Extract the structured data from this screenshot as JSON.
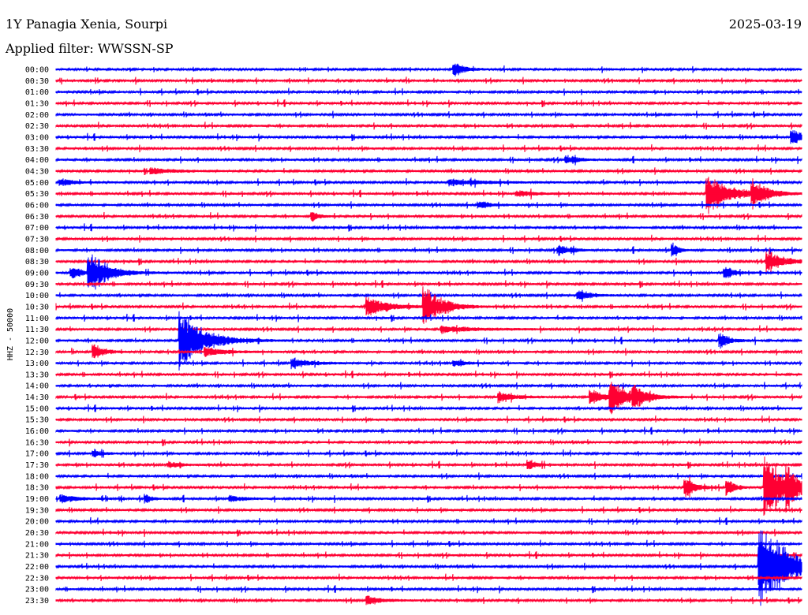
{
  "header": {
    "station": "1Y Panagia Xenia, Sourpi",
    "date": "2025-03-19",
    "filter_label": "Applied filter: WWSSN-SP"
  },
  "chart_data": {
    "type": "line",
    "plot_type": "helicorder",
    "y_axis_label": "HHZ - 50000",
    "row_labels": [
      "00:00",
      "00:30",
      "01:00",
      "01:30",
      "02:00",
      "02:30",
      "03:00",
      "03:30",
      "04:00",
      "04:30",
      "05:00",
      "05:30",
      "06:00",
      "06:30",
      "07:00",
      "07:30",
      "08:00",
      "08:30",
      "09:00",
      "09:30",
      "10:00",
      "10:30",
      "11:00",
      "11:30",
      "12:00",
      "12:30",
      "13:00",
      "13:30",
      "14:00",
      "14:30",
      "15:00",
      "15:30",
      "16:00",
      "16:30",
      "17:00",
      "17:30",
      "18:00",
      "18:30",
      "19:00",
      "19:30",
      "20:00",
      "20:30",
      "21:00",
      "21:30",
      "22:00",
      "22:30",
      "23:00",
      "23:30"
    ],
    "row_minutes": 30,
    "colors": {
      "even_rows": "#0000ff",
      "odd_rows": "#ff0033"
    },
    "events": [
      {
        "row": "00:00",
        "minute": 16.0,
        "amplitude": 9,
        "duration": 0.8
      },
      {
        "row": "03:00",
        "minute": 29.6,
        "amplitude": 10,
        "duration": 1.0
      },
      {
        "row": "04:00",
        "minute": 20.5,
        "amplitude": 5,
        "duration": 1.0
      },
      {
        "row": "04:30",
        "minute": 3.8,
        "amplitude": 4,
        "duration": 2.0
      },
      {
        "row": "05:00",
        "minute": 0.2,
        "amplitude": 5,
        "duration": 1.0
      },
      {
        "row": "05:00",
        "minute": 15.8,
        "amplitude": 4,
        "duration": 3.0
      },
      {
        "row": "05:30",
        "minute": 18.5,
        "amplitude": 4,
        "duration": 1.6
      },
      {
        "row": "05:30",
        "minute": 26.2,
        "amplitude": 28,
        "duration": 1.8
      },
      {
        "row": "05:30",
        "minute": 28.0,
        "amplitude": 18,
        "duration": 1.2
      },
      {
        "row": "06:00",
        "minute": 17.0,
        "amplitude": 5,
        "duration": 0.9
      },
      {
        "row": "06:30",
        "minute": 10.3,
        "amplitude": 6,
        "duration": 0.6
      },
      {
        "row": "08:00",
        "minute": 20.2,
        "amplitude": 6,
        "duration": 1.0
      },
      {
        "row": "08:00",
        "minute": 24.8,
        "amplitude": 10,
        "duration": 0.4
      },
      {
        "row": "08:30",
        "minute": 28.6,
        "amplitude": 16,
        "duration": 1.3
      },
      {
        "row": "09:00",
        "minute": 0.6,
        "amplitude": 8,
        "duration": 1.0
      },
      {
        "row": "09:00",
        "minute": 1.3,
        "amplitude": 30,
        "duration": 1.5
      },
      {
        "row": "09:00",
        "minute": 26.9,
        "amplitude": 8,
        "duration": 0.8
      },
      {
        "row": "10:00",
        "minute": 21.0,
        "amplitude": 7,
        "duration": 1.0
      },
      {
        "row": "10:30",
        "minute": 12.5,
        "amplitude": 14,
        "duration": 1.8
      },
      {
        "row": "10:30",
        "minute": 14.8,
        "amplitude": 28,
        "duration": 1.4
      },
      {
        "row": "11:30",
        "minute": 15.5,
        "amplitude": 4,
        "duration": 3.0
      },
      {
        "row": "12:00",
        "minute": 5.0,
        "amplitude": 40,
        "duration": 2.0
      },
      {
        "row": "12:00",
        "minute": 26.7,
        "amplitude": 10,
        "duration": 0.8
      },
      {
        "row": "12:30",
        "minute": 1.5,
        "amplitude": 10,
        "duration": 0.8
      },
      {
        "row": "12:30",
        "minute": 6.0,
        "amplitude": 6,
        "duration": 1.6
      },
      {
        "row": "13:00",
        "minute": 9.5,
        "amplitude": 7,
        "duration": 1.5
      },
      {
        "row": "13:00",
        "minute": 16.0,
        "amplitude": 4,
        "duration": 1.0
      },
      {
        "row": "14:30",
        "minute": 17.8,
        "amplitude": 8,
        "duration": 1.2
      },
      {
        "row": "14:30",
        "minute": 21.5,
        "amplitude": 10,
        "duration": 1.2
      },
      {
        "row": "14:30",
        "minute": 22.3,
        "amplitude": 22,
        "duration": 1.5
      },
      {
        "row": "14:30",
        "minute": 23.2,
        "amplitude": 14,
        "duration": 1.0
      },
      {
        "row": "17:00",
        "minute": 1.5,
        "amplitude": 5,
        "duration": 0.6
      },
      {
        "row": "17:30",
        "minute": 19.0,
        "amplitude": 7,
        "duration": 0.6
      },
      {
        "row": "17:30",
        "minute": 4.5,
        "amplitude": 4,
        "duration": 1.0
      },
      {
        "row": "18:30",
        "minute": 25.3,
        "amplitude": 14,
        "duration": 0.8
      },
      {
        "row": "18:30",
        "minute": 27.0,
        "amplitude": 12,
        "duration": 0.6
      },
      {
        "row": "18:30",
        "minute": 28.5,
        "amplitude": 50,
        "duration": 1.5
      },
      {
        "row": "18:30",
        "minute": 29.4,
        "amplitude": 20,
        "duration": 0.8
      },
      {
        "row": "19:00",
        "minute": 0.2,
        "amplitude": 6,
        "duration": 1.2
      },
      {
        "row": "19:00",
        "minute": 3.6,
        "amplitude": 6,
        "duration": 0.4
      },
      {
        "row": "19:00",
        "minute": 7.0,
        "amplitude": 4,
        "duration": 1.0
      },
      {
        "row": "22:00",
        "minute": 28.3,
        "amplitude": 60,
        "duration": 2.5
      },
      {
        "row": "23:30",
        "minute": 12.5,
        "amplitude": 6,
        "duration": 1.2
      }
    ],
    "grid": false,
    "legend": "none"
  }
}
